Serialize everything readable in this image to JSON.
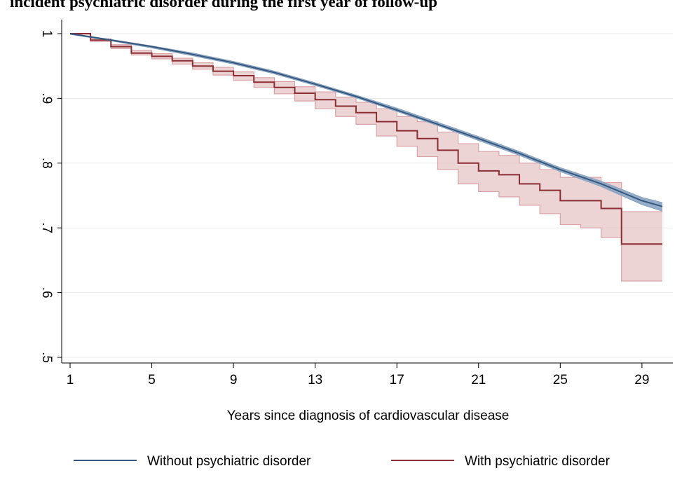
{
  "title": "incident psychiatric disorder during the first year of follow-up",
  "chart_data": {
    "type": "line",
    "xlabel": "Years since diagnosis of cardiovascular disease",
    "ylabel": "",
    "xlim": [
      1,
      30
    ],
    "ylim": [
      0.5,
      1.0
    ],
    "x_ticks": [
      1,
      5,
      9,
      13,
      17,
      21,
      25,
      29
    ],
    "x_tick_labels": [
      "1",
      "5",
      "9",
      "13",
      "17",
      "21",
      "25",
      "29"
    ],
    "y_ticks": [
      0.5,
      0.6,
      0.7,
      0.8,
      0.9,
      1.0
    ],
    "y_tick_labels": [
      ".5",
      ".6",
      ".7",
      ".8",
      ".9",
      "1"
    ],
    "grid": true,
    "legend_position": "bottom",
    "series": [
      {
        "name": "Without psychiatric disorder",
        "color": "#35587f",
        "band_color": "#8aa4c2",
        "step": false,
        "x": [
          1,
          3,
          5,
          7,
          9,
          11,
          13,
          15,
          17,
          19,
          21,
          23,
          25,
          27,
          29,
          30
        ],
        "y": [
          1.0,
          0.99,
          0.98,
          0.968,
          0.955,
          0.94,
          0.922,
          0.903,
          0.882,
          0.86,
          0.838,
          0.815,
          0.79,
          0.768,
          0.742,
          0.733
        ],
        "lower": [
          0.999,
          0.989,
          0.978,
          0.966,
          0.953,
          0.938,
          0.92,
          0.901,
          0.88,
          0.858,
          0.835,
          0.812,
          0.787,
          0.764,
          0.736,
          0.726
        ],
        "upper": [
          1.0,
          0.991,
          0.981,
          0.97,
          0.957,
          0.942,
          0.924,
          0.905,
          0.885,
          0.863,
          0.841,
          0.818,
          0.793,
          0.772,
          0.747,
          0.739
        ]
      },
      {
        "name": "With psychiatric disorder",
        "color": "#8c2d33",
        "band_color": "#e6c4c6",
        "band_edge_color": "#d9a2a6",
        "step": true,
        "x": [
          1,
          2,
          3,
          4,
          5,
          6,
          7,
          8,
          9,
          10,
          11,
          12,
          13,
          14,
          15,
          16,
          17,
          18,
          19,
          20,
          21,
          22,
          23,
          24,
          25,
          26,
          27,
          28,
          29,
          30
        ],
        "y": [
          1.0,
          0.99,
          0.98,
          0.97,
          0.965,
          0.958,
          0.95,
          0.942,
          0.935,
          0.925,
          0.917,
          0.908,
          0.898,
          0.888,
          0.878,
          0.864,
          0.85,
          0.838,
          0.82,
          0.8,
          0.788,
          0.782,
          0.768,
          0.758,
          0.742,
          0.742,
          0.73,
          0.675,
          0.675,
          0.675
        ],
        "lower": [
          0.999,
          0.988,
          0.977,
          0.967,
          0.961,
          0.953,
          0.945,
          0.936,
          0.928,
          0.917,
          0.907,
          0.896,
          0.884,
          0.872,
          0.86,
          0.842,
          0.826,
          0.81,
          0.79,
          0.768,
          0.756,
          0.748,
          0.735,
          0.722,
          0.705,
          0.7,
          0.685,
          0.618,
          0.618,
          0.618
        ],
        "upper": [
          1.0,
          0.992,
          0.983,
          0.974,
          0.969,
          0.962,
          0.955,
          0.948,
          0.941,
          0.932,
          0.926,
          0.918,
          0.91,
          0.902,
          0.894,
          0.884,
          0.872,
          0.864,
          0.848,
          0.83,
          0.818,
          0.812,
          0.8,
          0.79,
          0.778,
          0.778,
          0.77,
          0.725,
          0.725,
          0.725
        ]
      }
    ]
  }
}
